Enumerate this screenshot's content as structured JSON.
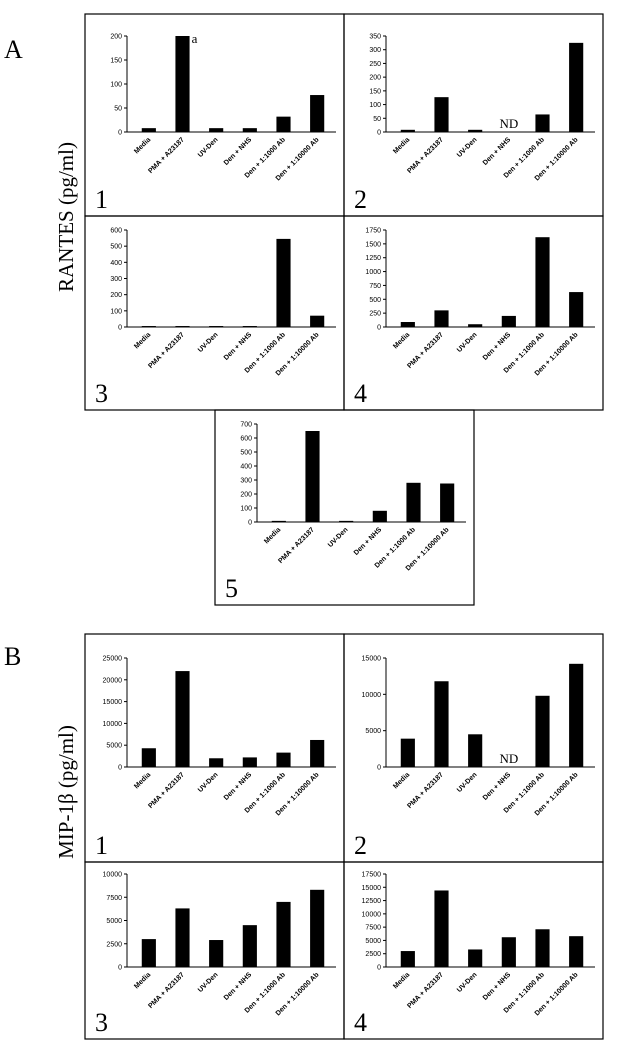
{
  "sections": [
    {
      "id": "A",
      "label": "A",
      "ylabel": "RANTES (pg/ml)",
      "panels": [
        {
          "number": "1",
          "ymax": 200,
          "ticks": [
            0,
            50,
            100,
            150,
            200
          ],
          "values": [
            8,
            200,
            8,
            8,
            32,
            77
          ],
          "annotations": [
            {
              "category_index": 1,
              "text": "a"
            }
          ]
        },
        {
          "number": "2",
          "ymax": 350,
          "ticks": [
            0,
            50,
            100,
            150,
            200,
            250,
            300,
            350
          ],
          "values": [
            8,
            127,
            8,
            null,
            64,
            325
          ],
          "annotations": [
            {
              "category_index": 3,
              "text": "ND"
            }
          ]
        },
        {
          "number": "3",
          "ymax": 600,
          "ticks": [
            0,
            100,
            200,
            300,
            400,
            500,
            600
          ],
          "values": [
            6,
            6,
            6,
            6,
            545,
            70
          ],
          "annotations": []
        },
        {
          "number": "4",
          "ymax": 1750,
          "ticks": [
            0,
            250,
            500,
            750,
            1000,
            1250,
            1500,
            1750
          ],
          "values": [
            90,
            300,
            50,
            200,
            1620,
            630
          ],
          "annotations": []
        },
        {
          "number": "5",
          "ymax": 700,
          "ticks": [
            0,
            100,
            200,
            300,
            400,
            500,
            600,
            700
          ],
          "values": [
            8,
            650,
            8,
            80,
            280,
            275
          ],
          "annotations": []
        }
      ]
    },
    {
      "id": "B",
      "label": "B",
      "ylabel": "MIP-1β (pg/ml)",
      "panels": [
        {
          "number": "1",
          "ymax": 25000,
          "ticks": [
            0,
            5000,
            10000,
            15000,
            20000,
            25000
          ],
          "values": [
            4300,
            22000,
            2000,
            2200,
            3300,
            6200
          ],
          "annotations": []
        },
        {
          "number": "2",
          "ymax": 15000,
          "ticks": [
            0,
            5000,
            10000,
            15000
          ],
          "values": [
            3900,
            11800,
            4500,
            null,
            9800,
            14200
          ],
          "annotations": [
            {
              "category_index": 3,
              "text": "ND"
            }
          ]
        },
        {
          "number": "3",
          "ymax": 10000,
          "ticks": [
            0,
            2500,
            5000,
            7500,
            10000
          ],
          "values": [
            3000,
            6300,
            2900,
            4500,
            7000,
            8300
          ],
          "annotations": []
        },
        {
          "number": "4",
          "ymax": 17500,
          "ticks": [
            0,
            2500,
            5000,
            7500,
            10000,
            12500,
            15000,
            17500
          ],
          "values": [
            3000,
            14400,
            3300,
            5600,
            7100,
            5800
          ],
          "annotations": []
        }
      ]
    }
  ],
  "chart_data": {
    "type": "bar",
    "categories": [
      "Media",
      "PMA + A23187",
      "UV-Den",
      "Den + NHS",
      "Den + 1:1000 Ab",
      "Den + 1:10000 Ab"
    ],
    "title": "",
    "xlabel": "",
    "grid": false,
    "legend": "none",
    "bar_color": "#000000"
  }
}
